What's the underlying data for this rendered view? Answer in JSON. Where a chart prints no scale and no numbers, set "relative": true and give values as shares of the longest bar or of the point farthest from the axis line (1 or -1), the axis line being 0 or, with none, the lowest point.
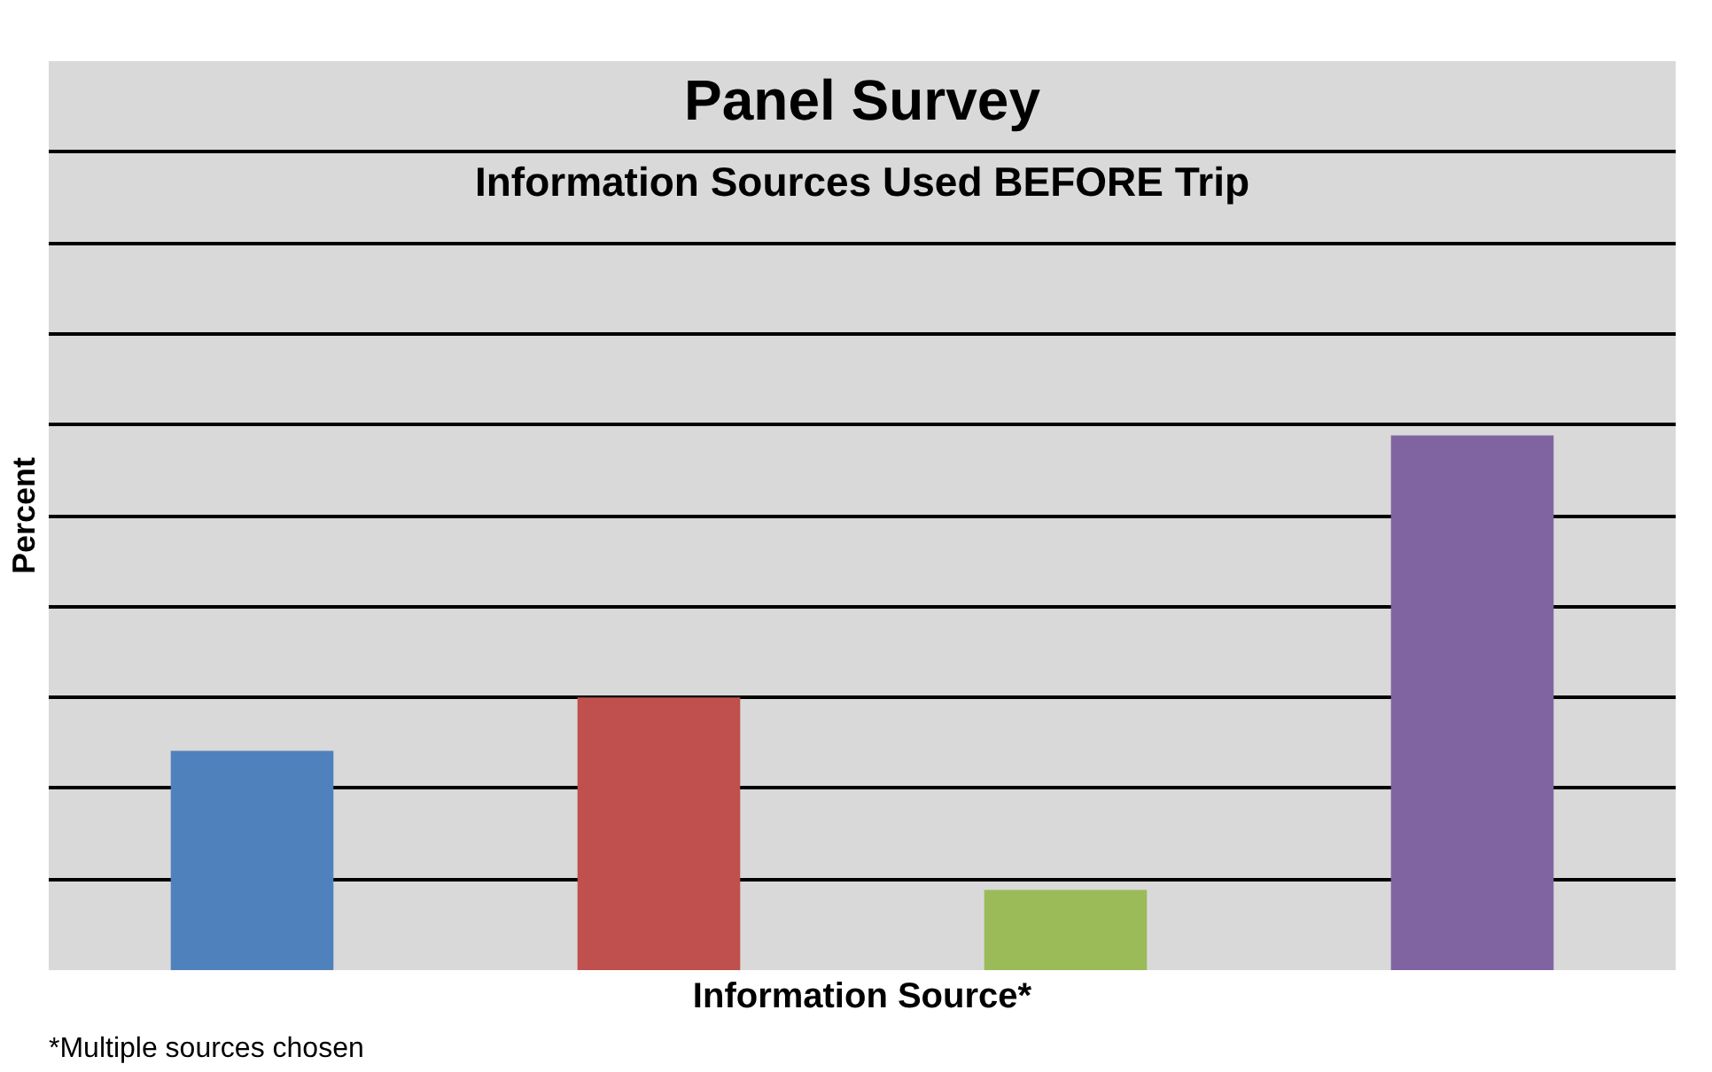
{
  "chart_data": {
    "type": "bar",
    "title": "Panel Survey",
    "subtitle": "Information Sources Used BEFORE Trip",
    "xlabel": "Information Source*",
    "ylabel": "Percent",
    "annotations": [
      "*Multiple sources chosen"
    ],
    "categories": [
      null,
      null,
      null,
      null
    ],
    "values": [
      0.41,
      0.51,
      0.15,
      1
    ],
    "colors": [
      "#4f81bd",
      "#c0504d",
      "#9bbb59",
      "#8064a2"
    ],
    "relative": true,
    "grid": "y"
  }
}
